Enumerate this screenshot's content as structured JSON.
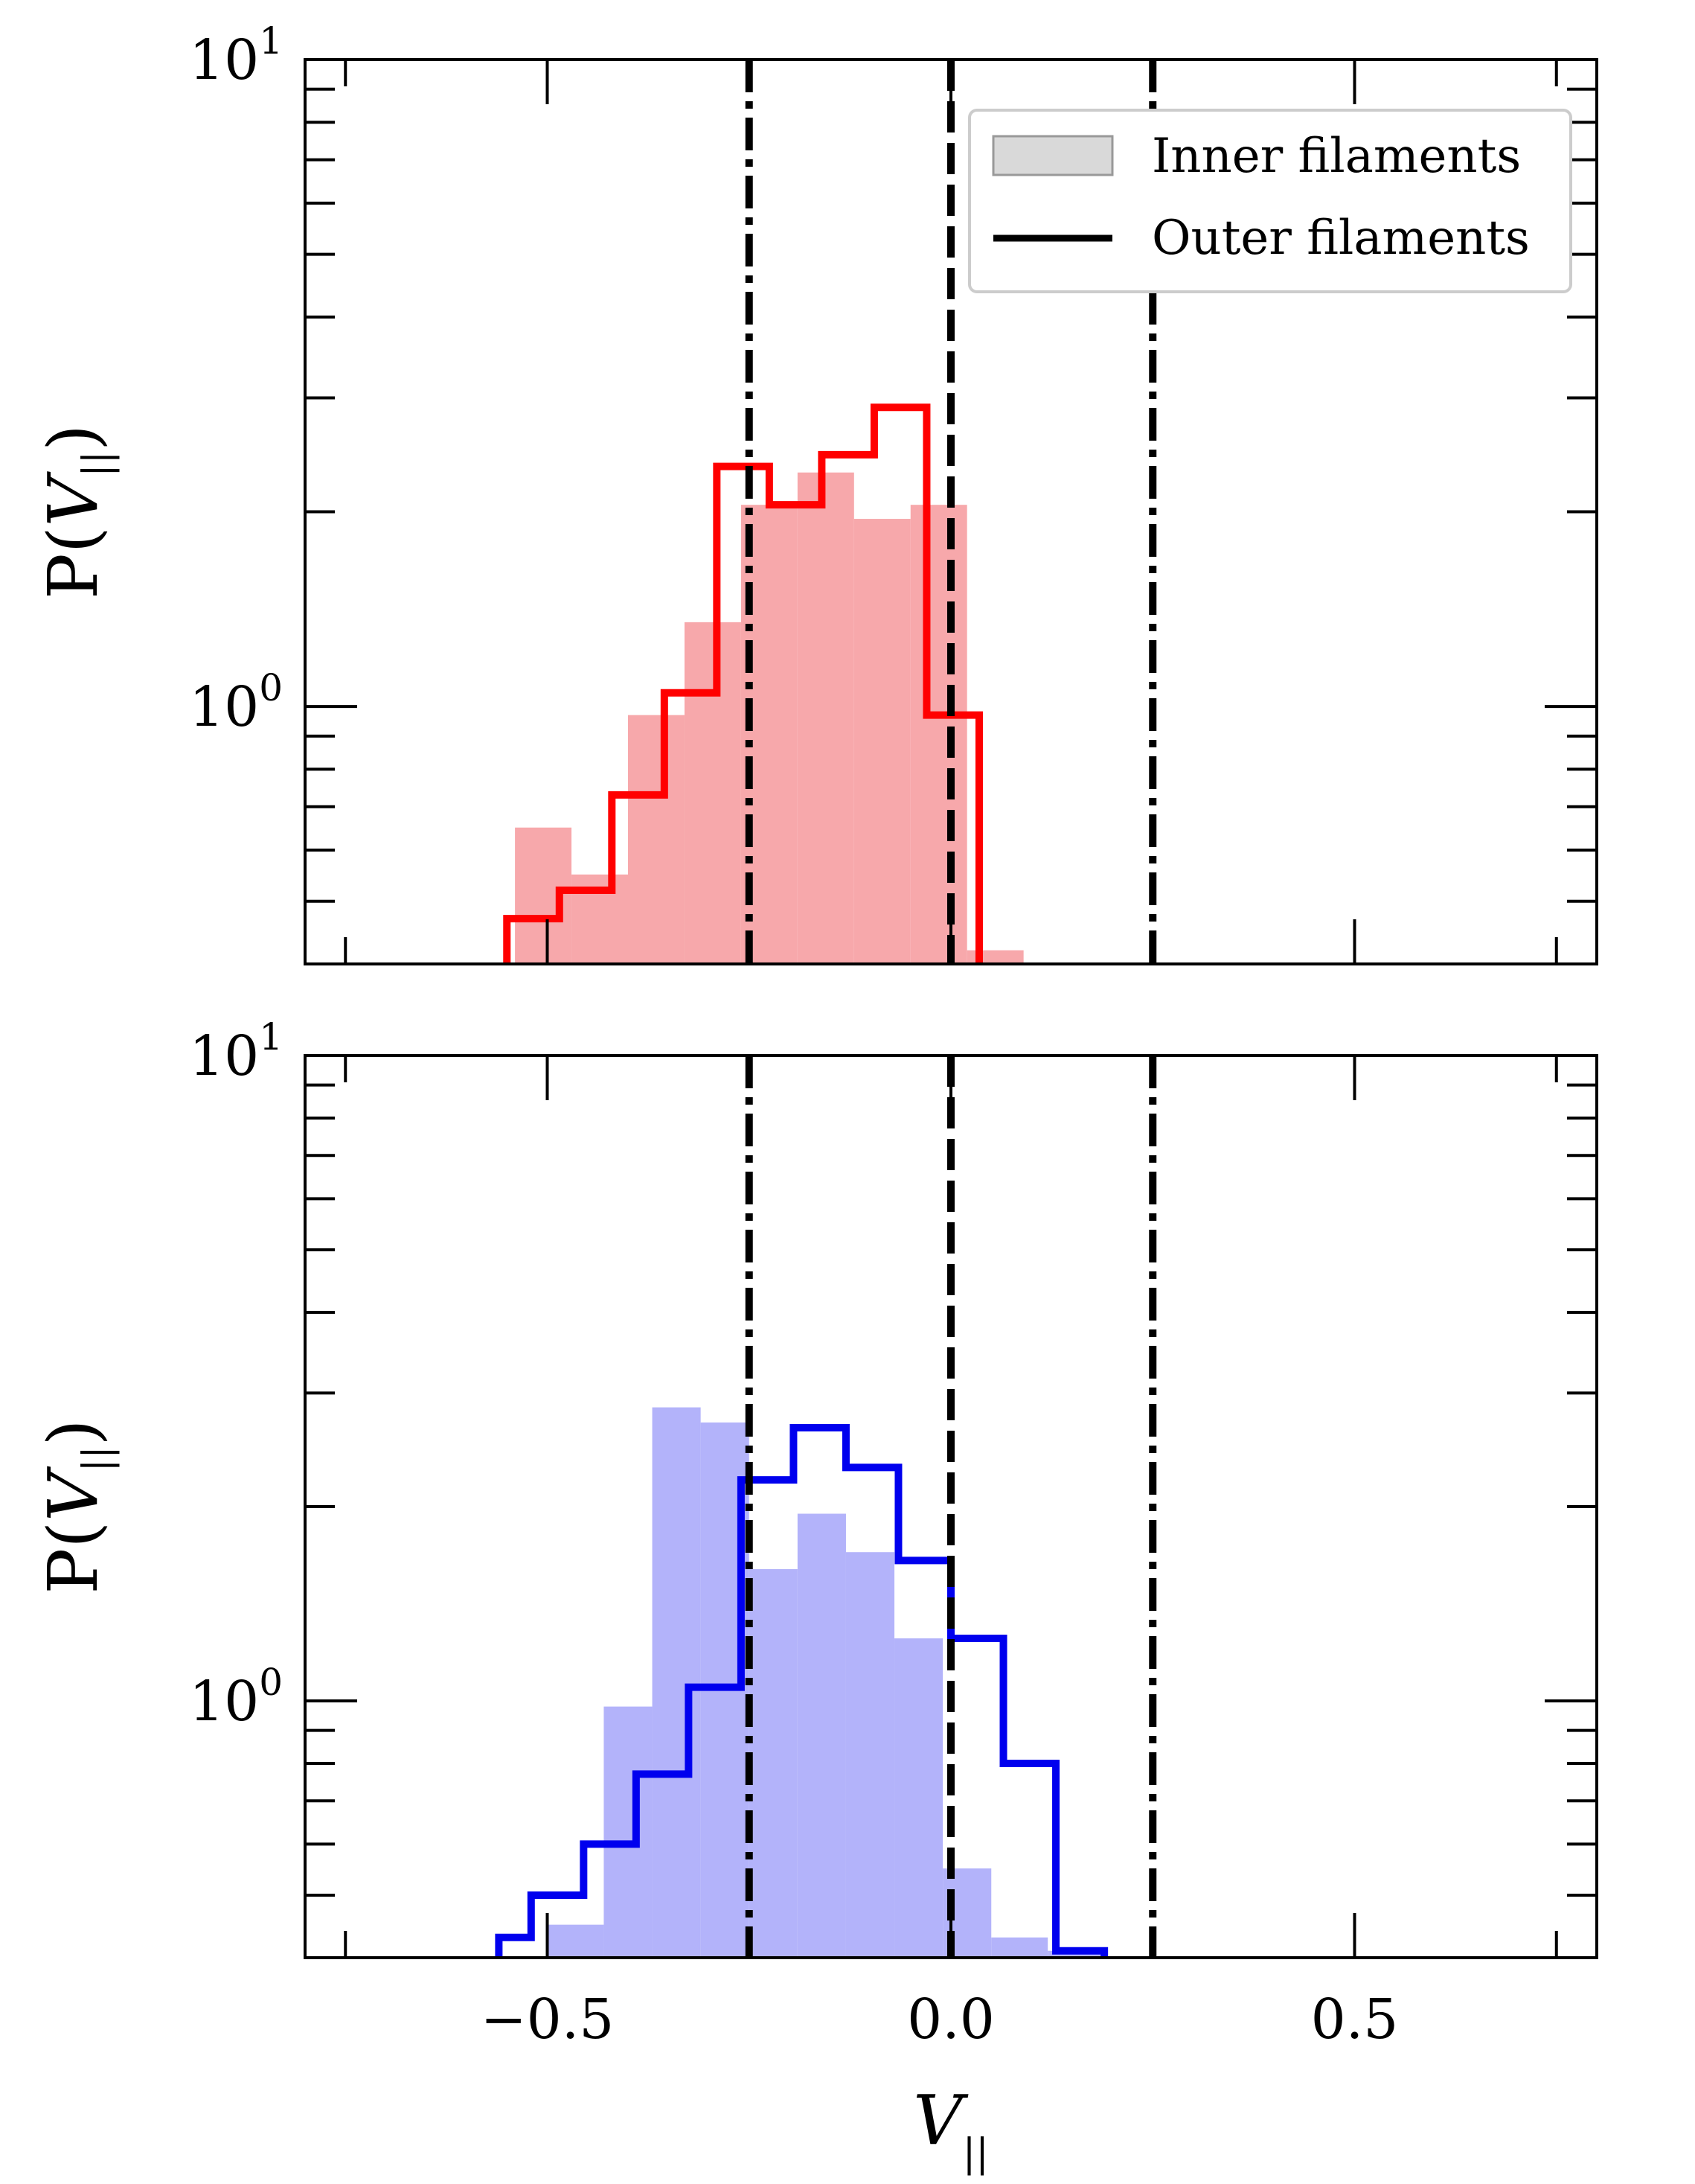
{
  "chart_data": [
    {
      "type": "bar",
      "panel": "top",
      "xlim": [
        -0.8,
        0.8
      ],
      "ylim": [
        0.4,
        10
      ],
      "yscale": "log",
      "ylabel_main": "P(",
      "ylabel_var": "V",
      "ylabel_sub": "||",
      "ylabel_close": ")",
      "ytick_labels": [
        {
          "value": 10,
          "base": "10",
          "exp": "1"
        },
        {
          "value": 1,
          "base": "10",
          "exp": "0"
        }
      ],
      "xticks": [
        -0.5,
        0.0,
        0.5
      ],
      "fill_color": "#f7a8ab",
      "line_color": "#ff0000",
      "inner_filaments": {
        "edges": [
          -0.54,
          -0.47,
          -0.4,
          -0.33,
          -0.26,
          -0.19,
          -0.12,
          -0.05,
          0.02,
          0.09
        ],
        "values": [
          0.65,
          0.55,
          0.97,
          1.35,
          2.05,
          2.3,
          1.95,
          2.05,
          0.42
        ]
      },
      "outer_filaments": {
        "edges": [
          -0.55,
          -0.485,
          -0.42,
          -0.355,
          -0.29,
          -0.225,
          -0.16,
          -0.095,
          -0.03,
          0.035,
          0.075
        ],
        "values": [
          0.47,
          0.52,
          0.73,
          1.05,
          2.35,
          2.05,
          2.45,
          2.9,
          0.97,
          0.0
        ]
      },
      "vlines": [
        {
          "x": -0.25,
          "style": "dashdot"
        },
        {
          "x": 0.0,
          "style": "dashed"
        },
        {
          "x": 0.25,
          "style": "dashdot"
        }
      ],
      "legend": {
        "placement": "top-right",
        "entries": [
          "Inner filaments",
          "Outer filaments"
        ]
      }
    },
    {
      "type": "bar",
      "panel": "bottom",
      "xlim": [
        -0.8,
        0.8
      ],
      "ylim": [
        0.4,
        10
      ],
      "yscale": "log",
      "ylabel_main": "P(",
      "ylabel_var": "V",
      "ylabel_sub": "||",
      "ylabel_close": ")",
      "ytick_labels": [
        {
          "value": 10,
          "base": "10",
          "exp": "1"
        },
        {
          "value": 1,
          "base": "10",
          "exp": "0"
        }
      ],
      "xticks": [
        -0.5,
        0.0,
        0.5
      ],
      "xtick_labels": [
        "−0.5",
        "0.0",
        "0.5"
      ],
      "xlabel_var": "V",
      "xlabel_sub": "||",
      "fill_color": "#b3b3fa",
      "line_color": "#0000ee",
      "inner_filaments": {
        "edges": [
          -0.5,
          -0.43,
          -0.37,
          -0.31,
          -0.25,
          -0.19,
          -0.13,
          -0.07,
          -0.01,
          0.05,
          0.12,
          0.19
        ],
        "values": [
          0.45,
          0.98,
          2.85,
          2.7,
          1.6,
          1.95,
          1.7,
          1.25,
          0.55,
          0.43,
          0.41
        ]
      },
      "outer_filaments": {
        "edges": [
          -0.56,
          -0.52,
          -0.455,
          -0.39,
          -0.325,
          -0.26,
          -0.195,
          -0.13,
          -0.065,
          0.0,
          0.065,
          0.13,
          0.19
        ],
        "values": [
          0.43,
          0.5,
          0.6,
          0.77,
          1.05,
          2.2,
          2.65,
          2.3,
          1.65,
          1.25,
          0.8,
          0.41
        ]
      },
      "vlines": [
        {
          "x": -0.25,
          "style": "dashdot"
        },
        {
          "x": 0.0,
          "style": "dashed"
        },
        {
          "x": 0.25,
          "style": "dashdot"
        }
      ]
    }
  ]
}
